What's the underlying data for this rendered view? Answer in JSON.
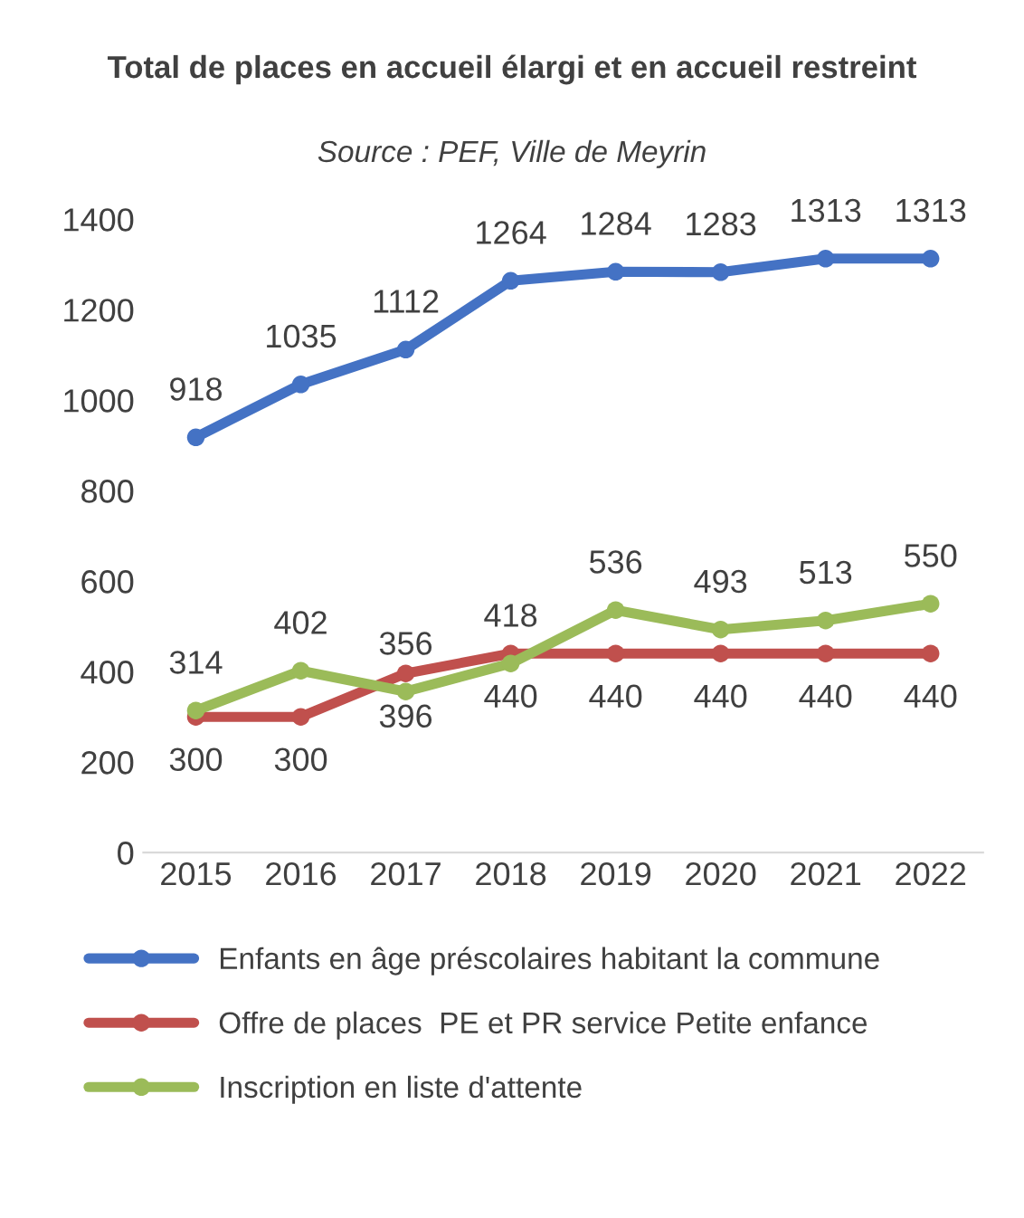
{
  "chart_data": {
    "type": "line",
    "title": "Total de places en accueil élargi et en accueil restreint",
    "subtitle": "Source : PEF, Ville de Meyrin",
    "categories": [
      "2015",
      "2016",
      "2017",
      "2018",
      "2019",
      "2020",
      "2021",
      "2022"
    ],
    "series": [
      {
        "name": "Enfants en âge préscolaires habitant la commune",
        "color": "#4472c4",
        "values": [
          918,
          1035,
          1112,
          1264,
          1284,
          1283,
          1313,
          1313
        ]
      },
      {
        "name": "Offre de places  PE et PR service Petite enfance",
        "color": "#c0504d",
        "values": [
          300,
          300,
          396,
          440,
          440,
          440,
          440,
          440
        ]
      },
      {
        "name": "Inscription en liste d'attente",
        "color": "#9bbb59",
        "values": [
          314,
          402,
          356,
          418,
          536,
          493,
          513,
          550
        ]
      }
    ],
    "ylim": [
      0,
      1400
    ],
    "yticks": [
      0,
      200,
      400,
      600,
      800,
      1000,
      1200,
      1400
    ],
    "data_labels": true,
    "grid": false,
    "legend": "bottom",
    "marker": "circle",
    "line_style": "solid"
  }
}
